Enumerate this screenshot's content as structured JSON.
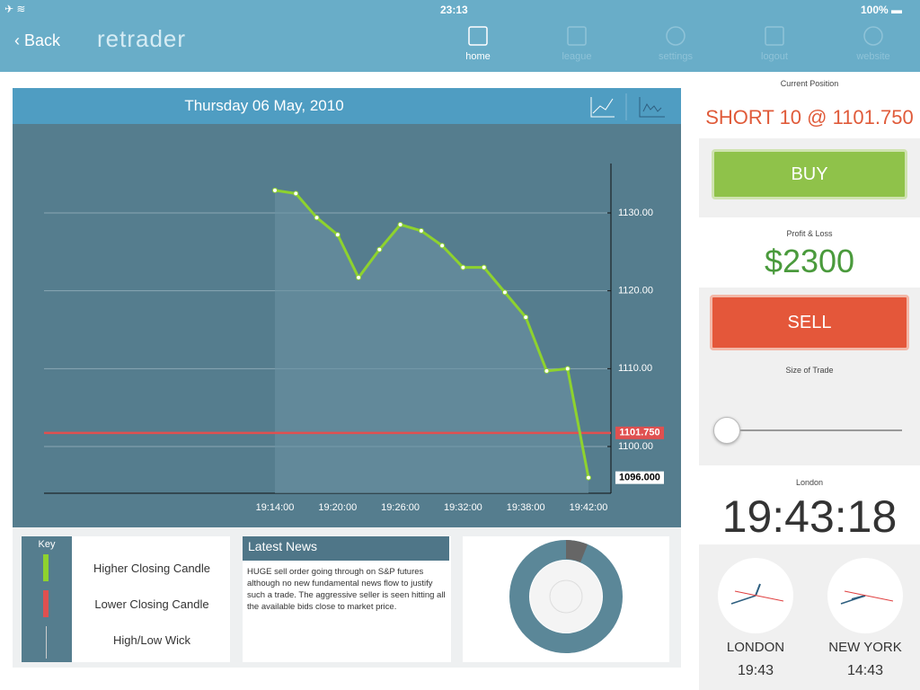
{
  "status": {
    "time": "23:13",
    "battery": "100%"
  },
  "nav": {
    "back": "Back",
    "logo": "retrader",
    "items": [
      "home",
      "league",
      "settings",
      "logout",
      "website"
    ]
  },
  "chart_data": {
    "type": "line",
    "title": "Thursday 06 May, 2010",
    "categories": [
      "19:14:00",
      null,
      null,
      "19:20:00",
      null,
      null,
      "19:26:00",
      null,
      null,
      "19:32:00",
      null,
      null,
      "19:38:00",
      null,
      null,
      "19:42:00"
    ],
    "values": [
      1132.9,
      1132.5,
      1129.4,
      1127.2,
      1121.7,
      1125.3,
      1128.5,
      1127.7,
      1125.8,
      1123.0,
      1123.0,
      1119.8,
      1116.6,
      1109.7,
      1110.0,
      1096.0
    ],
    "value_labels": [
      null,
      null,
      null,
      null,
      null,
      null,
      null,
      null,
      null,
      null,
      null,
      null,
      null,
      null,
      null,
      "1096.000"
    ],
    "color": "#8ed22e",
    "ylim": [
      1094,
      1136
    ],
    "yticks": [
      {
        "value": 1100,
        "label": "1100.00"
      },
      {
        "value": 1110,
        "label": "1110.00"
      },
      {
        "value": 1120,
        "label": "1120.00"
      },
      {
        "value": 1130,
        "label": "1130.00"
      }
    ],
    "reference_line": {
      "value": 1101.75,
      "label": "1101.750",
      "color": "#e05050"
    },
    "grid": true
  },
  "key": {
    "title": "Key",
    "items": [
      "Higher Closing Candle",
      "Lower Closing Candle",
      "High/Low Wick"
    ]
  },
  "news": {
    "title": "Latest News",
    "text": "HUGE sell order going through on S&P futures although no new fundamental news flow to justify such a trade. The aggressive seller is seen hitting all the available bids close to market price."
  },
  "side": {
    "position_label": "Current Position",
    "position": "SHORT 10 @ 1101.750",
    "buy": "BUY",
    "pl_label": "Profit & Loss",
    "pl": "$2300",
    "sell": "SELL",
    "size_label": "Size of Trade",
    "city_label": "London",
    "clock": "19:43:18",
    "clocks": [
      {
        "city": "LONDON",
        "time": "19:43"
      },
      {
        "city": "NEW YORK",
        "time": "14:43"
      }
    ]
  }
}
